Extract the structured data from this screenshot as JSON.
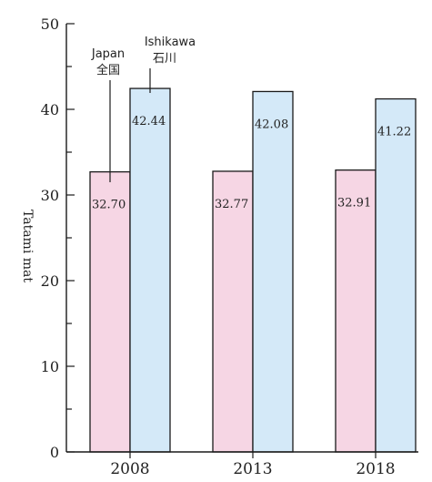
{
  "chart_data": {
    "type": "bar",
    "title": "",
    "xlabel": "",
    "ylabel": "Tatami mat",
    "categories": [
      "2008",
      "2013",
      "2018"
    ],
    "series": [
      {
        "name": "Japan",
        "name_ja": "全国",
        "values": [
          32.7,
          32.77,
          32.91
        ],
        "labels": [
          "32.70",
          "32.77",
          "32.91"
        ]
      },
      {
        "name": "Ishikawa",
        "name_ja": "石川",
        "values": [
          42.44,
          42.08,
          41.22
        ],
        "labels": [
          "42.44",
          "42.08",
          "41.22"
        ]
      }
    ],
    "ylim": [
      0,
      50
    ],
    "yticks": [
      "0",
      "10",
      "20",
      "30",
      "40",
      "50"
    ],
    "grid": false,
    "legend": "annotated callouts",
    "colors": {
      "Japan": "#f6d6e4",
      "Ishikawa": "#d4e9f8",
      "stroke": "#1a1a1a"
    }
  }
}
